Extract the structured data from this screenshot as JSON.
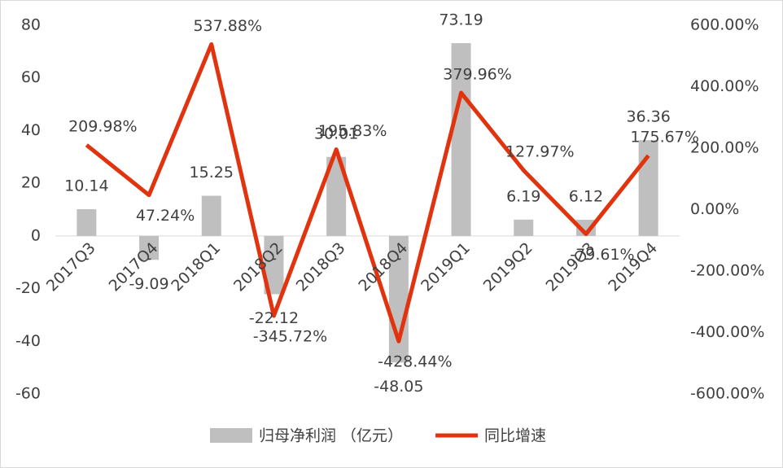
{
  "chart_data": {
    "type": "bar",
    "categories": [
      "2017Q3",
      "2017Q4",
      "2018Q1",
      "2018Q2",
      "2018Q3",
      "2018Q4",
      "2019Q1",
      "2019Q2",
      "2019Q3",
      "2019Q4"
    ],
    "series": [
      {
        "name": "归母净利润 （亿元）",
        "type": "bar",
        "color": "#bfbfbf",
        "values": [
          10.14,
          -9.09,
          15.25,
          -22.12,
          30.01,
          -48.05,
          73.19,
          6.19,
          6.12,
          36.36
        ]
      },
      {
        "name": "同比增速",
        "type": "line",
        "axis": "y2",
        "color": "#e0330e",
        "values": [
          209.98,
          47.24,
          537.88,
          -345.72,
          195.83,
          -428.44,
          379.96,
          127.97,
          -79.61,
          175.67
        ],
        "value_labels": [
          "209.98%",
          "47.24%",
          "537.88%",
          "-345.72%",
          "195.83%",
          "-428.44%",
          "379.96%",
          "127.97%",
          "-79.61%",
          "175.67%"
        ]
      }
    ],
    "ylim": [
      -60,
      80
    ],
    "yticks": [
      -60,
      -40,
      -20,
      0,
      20,
      40,
      60,
      80
    ],
    "y2lim": [
      -600,
      600
    ],
    "y2ticks": [
      {
        "value": -600,
        "label": "-600.00%"
      },
      {
        "value": -400,
        "label": "-400.00%"
      },
      {
        "value": -200,
        "label": "-200.00%"
      },
      {
        "value": 0,
        "label": "0.00%"
      },
      {
        "value": 200,
        "label": "200.00%"
      },
      {
        "value": 400,
        "label": "400.00%"
      },
      {
        "value": 600,
        "label": "600.00%"
      }
    ],
    "legend": "bottom"
  }
}
